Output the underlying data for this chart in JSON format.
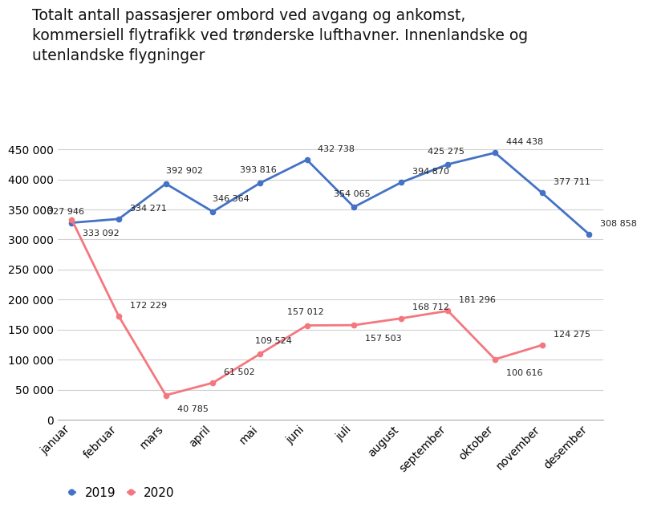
{
  "title": "Totalt antall passasjerer ombord ved avgang og ankomst,\nkommersiell flytrafikk ved trønderske lufthavner. Innenlandske og\nutenlandske flygninger",
  "months": [
    "januar",
    "februar",
    "mars",
    "april",
    "mai",
    "juni",
    "juli",
    "august",
    "september",
    "oktober",
    "november",
    "desember"
  ],
  "series_2019": [
    327946,
    334271,
    392902,
    346364,
    393816,
    432738,
    354065,
    394870,
    425275,
    444438,
    377711,
    308858
  ],
  "series_2020": [
    333092,
    172229,
    40785,
    61502,
    109524,
    157012,
    157503,
    168712,
    181296,
    100616,
    124275
  ],
  "color_2019": "#4472C4",
  "color_2020": "#F4777F",
  "ylim": [
    0,
    470000
  ],
  "yticks": [
    0,
    50000,
    100000,
    150000,
    200000,
    250000,
    300000,
    350000,
    400000,
    450000
  ],
  "legend_2019": "2019",
  "legend_2020": "2020",
  "annotations_2019": [
    {
      "val": 327946,
      "ox": -22,
      "oy": 6
    },
    {
      "val": 334271,
      "ox": 10,
      "oy": 6
    },
    {
      "val": 392902,
      "ox": 0,
      "oy": 8
    },
    {
      "val": 346364,
      "ox": 0,
      "oy": 8
    },
    {
      "val": 393816,
      "ox": -18,
      "oy": 8
    },
    {
      "val": 432738,
      "ox": 10,
      "oy": 6
    },
    {
      "val": 354065,
      "ox": -18,
      "oy": 8
    },
    {
      "val": 394870,
      "ox": 10,
      "oy": 6
    },
    {
      "val": 425275,
      "ox": -18,
      "oy": 8
    },
    {
      "val": 444438,
      "ox": 10,
      "oy": 6
    },
    {
      "val": 377711,
      "ox": 10,
      "oy": 6
    },
    {
      "val": 308858,
      "ox": 10,
      "oy": 6
    }
  ],
  "annotations_2020": [
    {
      "val": 333092,
      "ox": 10,
      "oy": -16
    },
    {
      "val": 172229,
      "ox": 10,
      "oy": 6
    },
    {
      "val": 40785,
      "ox": 10,
      "oy": -16
    },
    {
      "val": 61502,
      "ox": 10,
      "oy": 6
    },
    {
      "val": 109524,
      "ox": -4,
      "oy": 8
    },
    {
      "val": 157012,
      "ox": -18,
      "oy": 8
    },
    {
      "val": 157503,
      "ox": 10,
      "oy": -16
    },
    {
      "val": 168712,
      "ox": 10,
      "oy": 6
    },
    {
      "val": 181296,
      "ox": 10,
      "oy": 6
    },
    {
      "val": 100616,
      "ox": 10,
      "oy": -16
    },
    {
      "val": 124275,
      "ox": 10,
      "oy": 6
    }
  ]
}
